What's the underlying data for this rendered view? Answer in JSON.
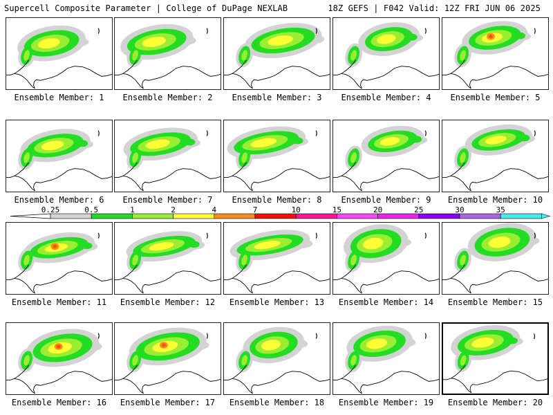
{
  "header": {
    "title": "Supercell Composite Parameter | College of DuPage NEXLAB",
    "run_info": "18Z GEFS | F042 Valid: 12Z FRI JUN 06 2025"
  },
  "legend": {
    "ticks": [
      "0.25",
      "0.5",
      "1",
      "2",
      "4",
      "7",
      "10",
      "15",
      "20",
      "25",
      "30",
      "35"
    ],
    "colors": [
      "#d3d3d3",
      "#22dd22",
      "#99ee33",
      "#ffff33",
      "#ff8c1a",
      "#ee1111",
      "#ff1493",
      "#ff44ff",
      "#ee22ee",
      "#8800ee",
      "#aa66dd",
      "#44eeee"
    ]
  },
  "panels": [
    {
      "caption": "Ensemble Member: 1"
    },
    {
      "caption": "Ensemble Member: 2"
    },
    {
      "caption": "Ensemble Member: 3"
    },
    {
      "caption": "Ensemble Member: 4"
    },
    {
      "caption": "Ensemble Member: 5"
    },
    {
      "caption": "Ensemble Member: 6"
    },
    {
      "caption": "Ensemble Member: 7"
    },
    {
      "caption": "Ensemble Member: 8"
    },
    {
      "caption": "Ensemble Member: 9"
    },
    {
      "caption": "Ensemble Member: 10"
    },
    {
      "caption": "Ensemble Member: 11"
    },
    {
      "caption": "Ensemble Member: 12"
    },
    {
      "caption": "Ensemble Member: 13"
    },
    {
      "caption": "Ensemble Member: 14"
    },
    {
      "caption": "Ensemble Member: 15"
    },
    {
      "caption": "Ensemble Member: 16"
    },
    {
      "caption": "Ensemble Member: 17"
    },
    {
      "caption": "Ensemble Member: 18"
    },
    {
      "caption": "Ensemble Member: 19"
    },
    {
      "caption": "Ensemble Member: 20"
    }
  ]
}
